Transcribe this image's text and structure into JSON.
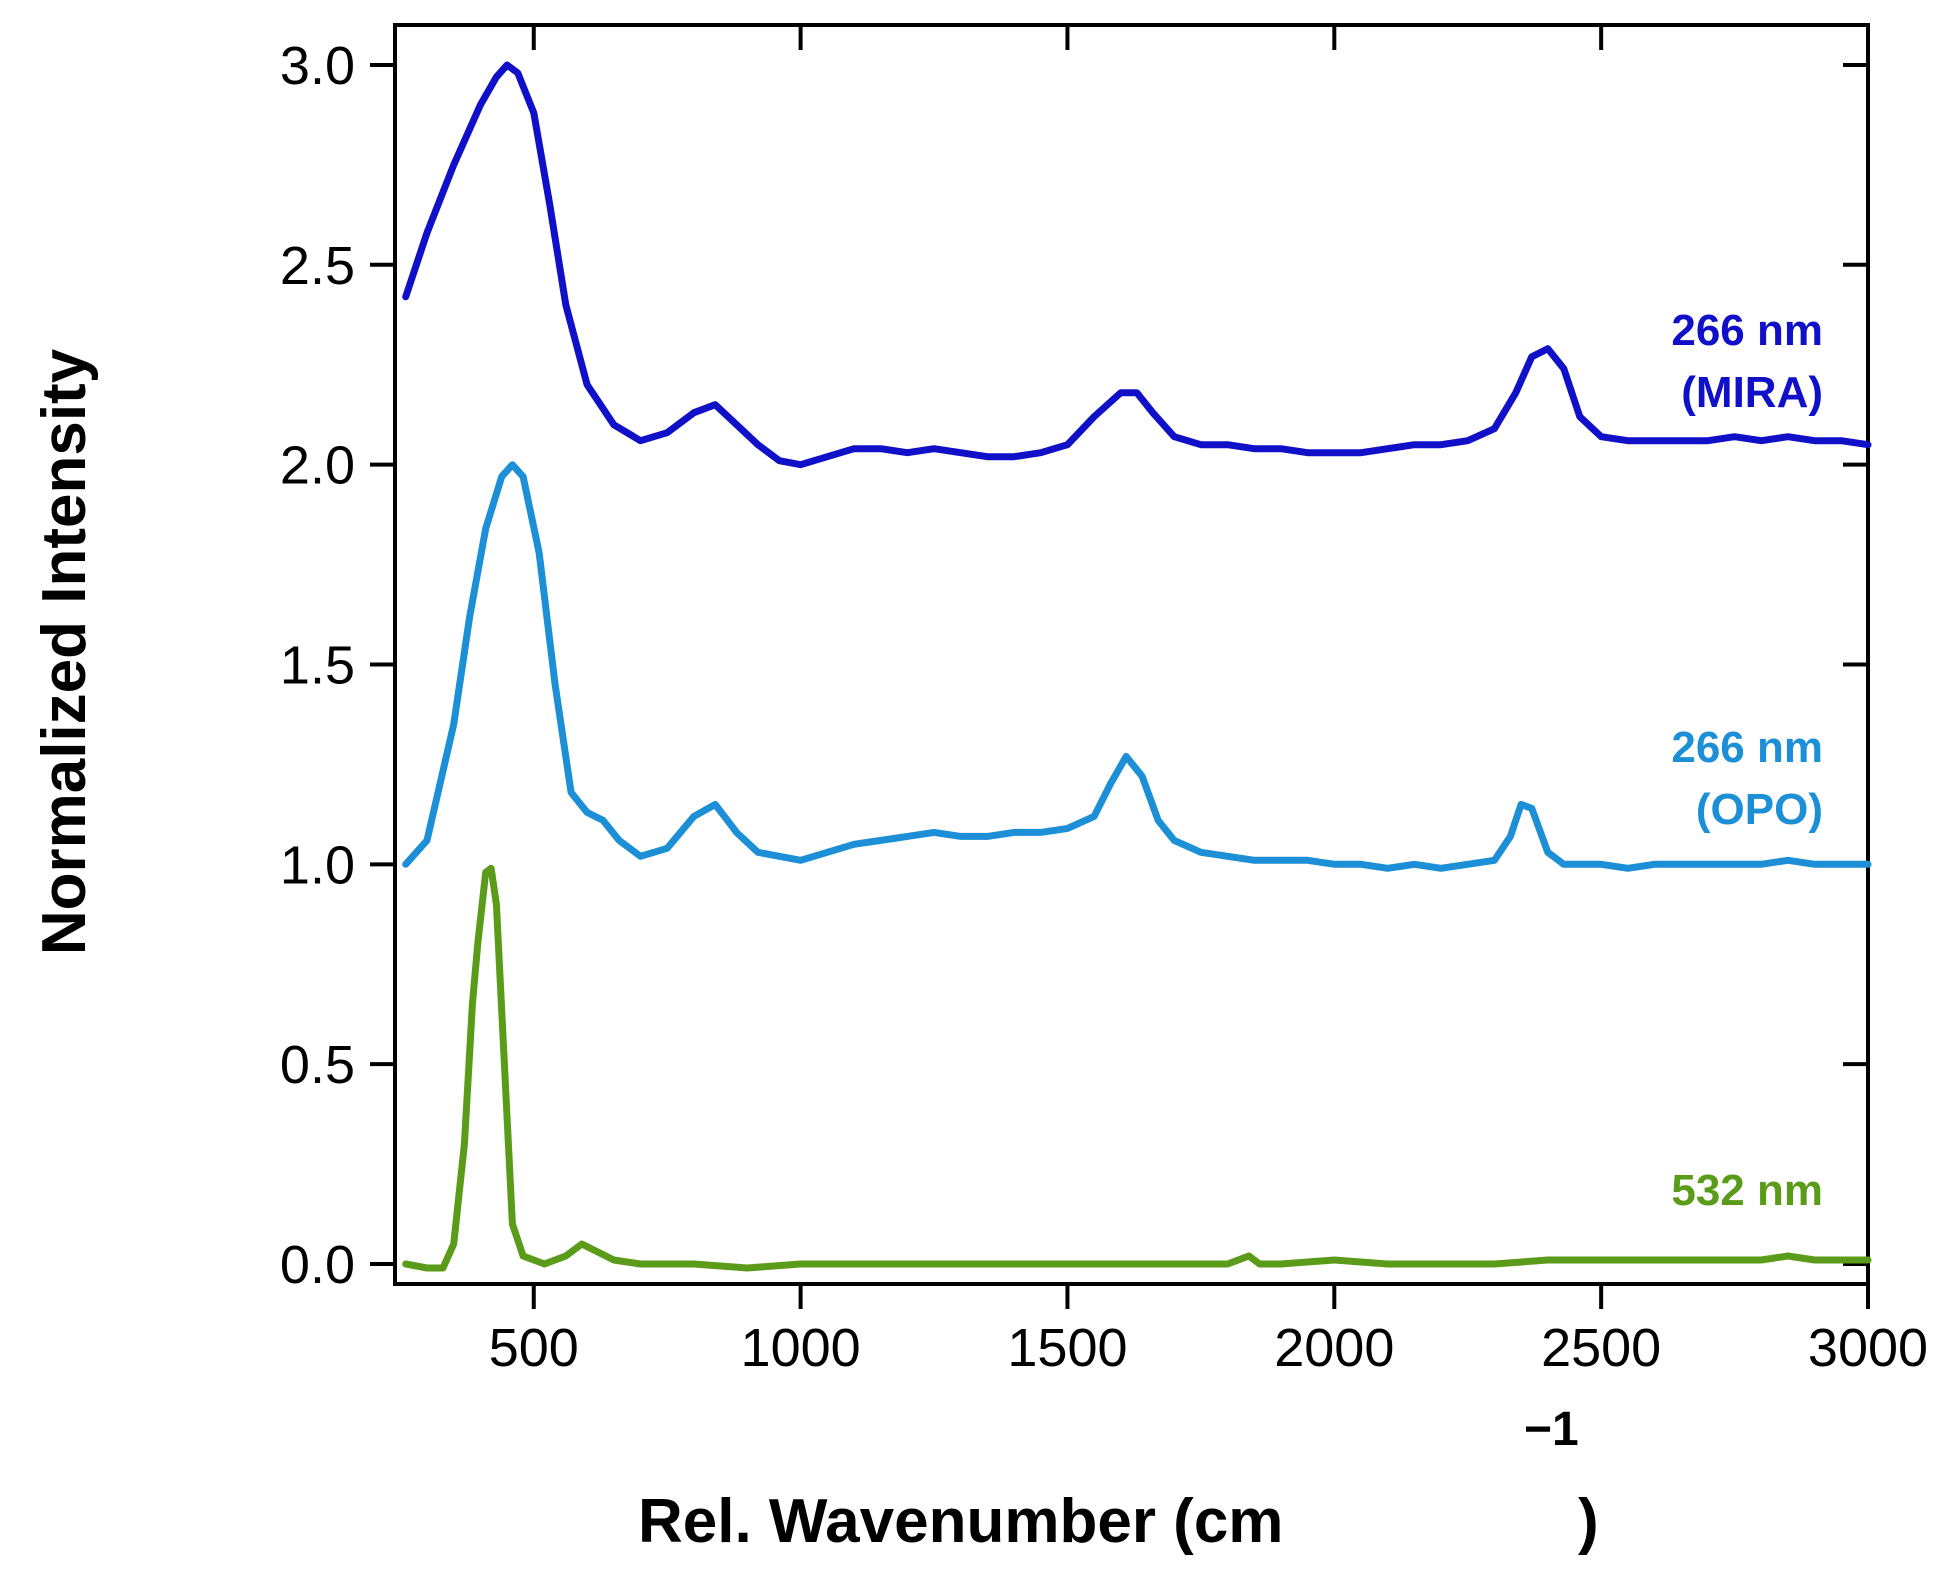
{
  "chart_data": {
    "type": "line",
    "title": "",
    "xlabel": "Rel. Wavenumber (cm",
    "xlabel_superscript": "−1",
    "xlabel_close": ")",
    "ylabel": "Normalized Intensity",
    "xlim": [
      240,
      3000
    ],
    "ylim": [
      -0.05,
      3.1
    ],
    "xticks": [
      500,
      1000,
      1500,
      2000,
      2500,
      3000
    ],
    "yticks": [
      0.0,
      0.5,
      1.0,
      1.5,
      2.0,
      2.5,
      3.0
    ],
    "xtick_labels": [
      "500",
      "1000",
      "1500",
      "2000",
      "2500",
      "3000"
    ],
    "ytick_labels": [
      "0.0",
      "0.5",
      "1.0",
      "1.5",
      "2.0",
      "2.5",
      "3.0"
    ],
    "grid": false,
    "series": [
      {
        "name": "266 nm (MIRA)",
        "label_lines": [
          "266 nm",
          "(MIRA)"
        ],
        "color": "#1010c8",
        "x": [
          260,
          300,
          350,
          400,
          430,
          450,
          470,
          500,
          530,
          560,
          600,
          650,
          700,
          750,
          800,
          840,
          880,
          920,
          960,
          1000,
          1050,
          1100,
          1150,
          1200,
          1250,
          1300,
          1350,
          1400,
          1450,
          1500,
          1550,
          1600,
          1630,
          1660,
          1700,
          1750,
          1800,
          1850,
          1900,
          1950,
          2000,
          2050,
          2100,
          2150,
          2200,
          2250,
          2300,
          2340,
          2370,
          2400,
          2430,
          2460,
          2500,
          2550,
          2600,
          2650,
          2700,
          2750,
          2800,
          2850,
          2900,
          2950,
          3000
        ],
        "y": [
          2.42,
          2.58,
          2.75,
          2.9,
          2.97,
          3.0,
          2.98,
          2.88,
          2.65,
          2.4,
          2.2,
          2.1,
          2.06,
          2.08,
          2.13,
          2.15,
          2.1,
          2.05,
          2.01,
          2.0,
          2.02,
          2.04,
          2.04,
          2.03,
          2.04,
          2.03,
          2.02,
          2.02,
          2.03,
          2.05,
          2.12,
          2.18,
          2.18,
          2.13,
          2.07,
          2.05,
          2.05,
          2.04,
          2.04,
          2.03,
          2.03,
          2.03,
          2.04,
          2.05,
          2.05,
          2.06,
          2.09,
          2.18,
          2.27,
          2.29,
          2.24,
          2.12,
          2.07,
          2.06,
          2.06,
          2.06,
          2.06,
          2.07,
          2.06,
          2.07,
          2.06,
          2.06,
          2.05
        ]
      },
      {
        "name": "266 nm (OPO)",
        "label_lines": [
          "266 nm",
          "(OPO)"
        ],
        "color": "#1c8fd6",
        "x": [
          260,
          300,
          350,
          380,
          410,
          440,
          460,
          480,
          510,
          540,
          570,
          600,
          630,
          660,
          700,
          750,
          800,
          840,
          880,
          920,
          960,
          1000,
          1050,
          1100,
          1150,
          1200,
          1250,
          1300,
          1350,
          1400,
          1450,
          1500,
          1550,
          1580,
          1610,
          1640,
          1670,
          1700,
          1750,
          1800,
          1850,
          1900,
          1950,
          2000,
          2050,
          2100,
          2150,
          2200,
          2250,
          2300,
          2330,
          2350,
          2370,
          2400,
          2430,
          2460,
          2500,
          2550,
          2600,
          2650,
          2700,
          2750,
          2800,
          2850,
          2900,
          2950,
          3000
        ],
        "y": [
          1.0,
          1.06,
          1.35,
          1.62,
          1.84,
          1.97,
          2.0,
          1.97,
          1.78,
          1.45,
          1.18,
          1.13,
          1.11,
          1.06,
          1.02,
          1.04,
          1.12,
          1.15,
          1.08,
          1.03,
          1.02,
          1.01,
          1.03,
          1.05,
          1.06,
          1.07,
          1.08,
          1.07,
          1.07,
          1.08,
          1.08,
          1.09,
          1.12,
          1.2,
          1.27,
          1.22,
          1.11,
          1.06,
          1.03,
          1.02,
          1.01,
          1.01,
          1.01,
          1.0,
          1.0,
          0.99,
          1.0,
          0.99,
          1.0,
          1.01,
          1.07,
          1.15,
          1.14,
          1.03,
          1.0,
          1.0,
          1.0,
          0.99,
          1.0,
          1.0,
          1.0,
          1.0,
          1.0,
          1.01,
          1.0,
          1.0,
          1.0
        ]
      },
      {
        "name": "532 nm",
        "label_lines": [
          "532 nm"
        ],
        "color": "#5a9c1a",
        "x": [
          260,
          300,
          330,
          350,
          370,
          385,
          395,
          410,
          420,
          430,
          445,
          460,
          480,
          500,
          520,
          540,
          560,
          590,
          620,
          650,
          700,
          750,
          800,
          900,
          1000,
          1100,
          1200,
          1300,
          1400,
          1500,
          1600,
          1700,
          1800,
          1840,
          1860,
          1900,
          2000,
          2100,
          2200,
          2300,
          2400,
          2500,
          2600,
          2700,
          2800,
          2850,
          2900,
          3000
        ],
        "y": [
          0.0,
          -0.01,
          -0.01,
          0.05,
          0.3,
          0.65,
          0.8,
          0.98,
          0.99,
          0.9,
          0.5,
          0.1,
          0.02,
          0.01,
          0.0,
          0.01,
          0.02,
          0.05,
          0.03,
          0.01,
          0.0,
          0.0,
          0.0,
          -0.01,
          0.0,
          0.0,
          0.0,
          0.0,
          0.0,
          0.0,
          0.0,
          0.0,
          0.0,
          0.02,
          0.0,
          0.0,
          0.01,
          0.0,
          0.0,
          0.0,
          0.01,
          0.01,
          0.01,
          0.01,
          0.01,
          0.02,
          0.01,
          0.01
        ]
      }
    ]
  }
}
